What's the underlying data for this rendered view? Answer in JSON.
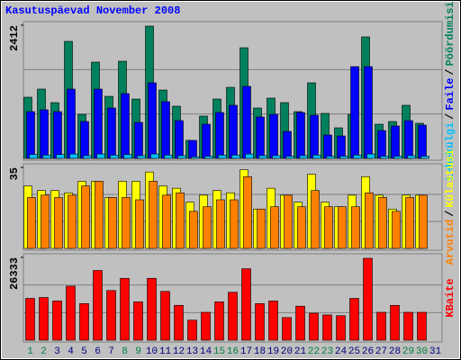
{
  "chart_data": [
    {
      "type": "bar",
      "title": "Kasutuspäevad November 2008",
      "ylim": [
        0,
        2412
      ],
      "yticks": [
        2412
      ],
      "legend_separator": "/",
      "series": [
        {
          "name": "Pöördumisi",
          "color": "#00805c",
          "values": [
            1108,
            1255,
            1010,
            2119,
            798,
            1744,
            1124,
            1760,
            1075,
            2396,
            1238,
            945,
            326,
            766,
            1075,
            1287,
            2004,
            913,
            1092,
            1010,
            847,
            1369,
            815,
            554,
            798,
            2200,
            619,
            668,
            962,
            636,
            null
          ]
        },
        {
          "name": "Faile",
          "color": "#0000ff",
          "values": [
            847,
            880,
            847,
            1255,
            668,
            1255,
            913,
            1173,
            652,
            1369,
            1027,
            684,
            326,
            619,
            831,
            962,
            1304,
            750,
            798,
            489,
            831,
            782,
            424,
            407,
            1662,
            1662,
            505,
            587,
            684,
            603,
            null
          ]
        },
        {
          "name": "Lehekülgi",
          "color": "#00c0ff",
          "values": [
            70,
            60,
            70,
            80,
            50,
            80,
            60,
            70,
            50,
            80,
            60,
            50,
            30,
            40,
            60,
            60,
            80,
            50,
            50,
            40,
            50,
            60,
            40,
            40,
            60,
            80,
            40,
            40,
            50,
            40,
            null
          ]
        }
      ]
    },
    {
      "type": "bar",
      "ylim": [
        0,
        35
      ],
      "yticks": [
        35
      ],
      "legend_separator": "/",
      "series": [
        {
          "name": "Külastusi",
          "color": "#ffff00",
          "values": [
            27,
            25,
            25,
            24,
            29,
            29,
            22,
            29,
            29,
            33,
            27,
            26,
            20,
            23,
            25,
            24,
            34,
            17,
            26,
            23,
            20,
            32,
            20,
            18,
            23,
            31,
            23,
            17,
            23,
            23,
            null
          ]
        },
        {
          "name": "Arvutid",
          "color": "#ff8000",
          "values": [
            22,
            23,
            22,
            23,
            27,
            29,
            22,
            22,
            21,
            29,
            23,
            24,
            16,
            18,
            21,
            21,
            31,
            17,
            18,
            23,
            18,
            25,
            18,
            18,
            18,
            24,
            22,
            16,
            22,
            23,
            null
          ]
        }
      ]
    },
    {
      "type": "bar",
      "ylim": [
        0,
        26333
      ],
      "yticks": [
        26333
      ],
      "categories": [
        "1",
        "2",
        "3",
        "4",
        "5",
        "6",
        "7",
        "8",
        "9",
        "10",
        "11",
        "12",
        "13",
        "14",
        "15",
        "16",
        "17",
        "18",
        "19",
        "20",
        "21",
        "22",
        "23",
        "24",
        "25",
        "26",
        "27",
        "28",
        "29",
        "30",
        "31"
      ],
      "category_colors": [
        "#008040",
        "#008040",
        "#000080",
        "#000080",
        "#000080",
        "#000080",
        "#000080",
        "#008040",
        "#008040",
        "#000080",
        "#000080",
        "#000080",
        "#000080",
        "#000080",
        "#008040",
        "#008040",
        "#000080",
        "#000080",
        "#000080",
        "#000080",
        "#000080",
        "#008040",
        "#008040",
        "#000080",
        "#000080",
        "#000080",
        "#000080",
        "#000080",
        "#008040",
        "#008040",
        "#000080"
      ],
      "series": [
        {
          "name": "KBaite",
          "color": "#ff0000",
          "values": [
            13305,
            13583,
            12474,
            17186,
            11643,
            22176,
            15800,
            19680,
            12197,
            19680,
            15523,
            11089,
            6375,
            8870,
            12197,
            15246,
            22731,
            11643,
            12474,
            7207,
            10812,
            8593,
            8039,
            7800,
            13305,
            26056,
            8870,
            11089,
            8870,
            8870,
            null
          ]
        }
      ]
    }
  ]
}
